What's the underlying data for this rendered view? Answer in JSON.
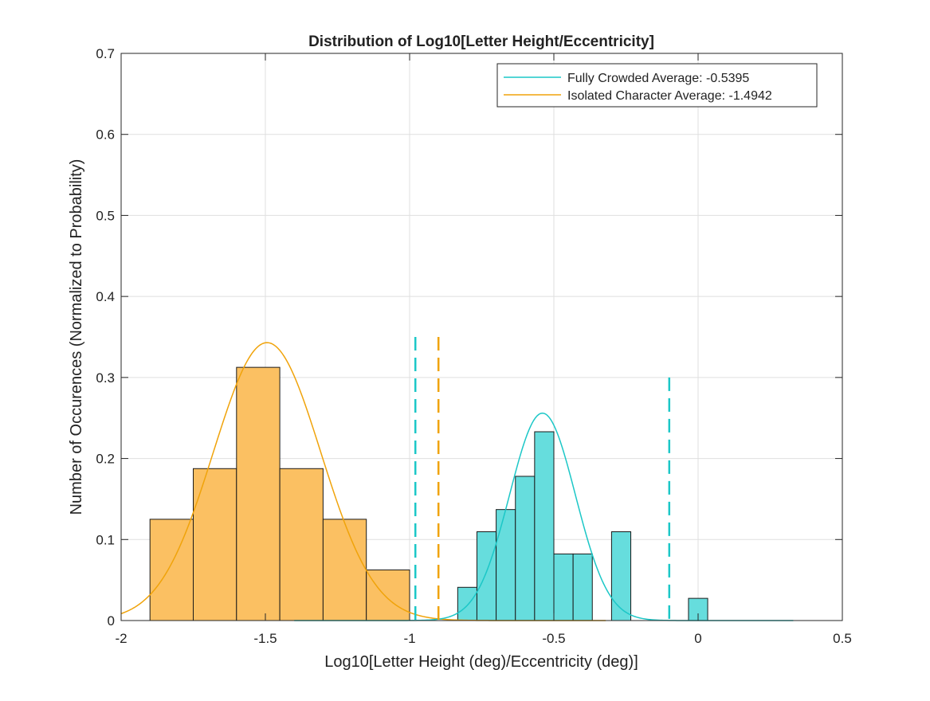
{
  "chart_data": {
    "type": "bar",
    "title": "Distribution of Log10[Letter Height/Eccentricity]",
    "xlabel": "Log10[Letter Height (deg)/Eccentricity (deg)]",
    "ylabel": "Number of Occurences (Normalized to Probability)",
    "xlim": [
      -2,
      0.5
    ],
    "ylim": [
      0,
      0.7
    ],
    "xticks": [
      -2,
      -1.5,
      -1,
      -0.5,
      0,
      0.5
    ],
    "xtick_labels": [
      "-2",
      "-1.5",
      "-1",
      "-0.5",
      "0",
      "0.5"
    ],
    "yticks": [
      0,
      0.1,
      0.2,
      0.3,
      0.4,
      0.5,
      0.6,
      0.7
    ],
    "ytick_labels": [
      "0",
      "0.1",
      "0.2",
      "0.3",
      "0.4",
      "0.5",
      "0.6",
      "0.7"
    ],
    "grid": true,
    "legend_position": "top-right",
    "series": [
      {
        "name": "Isolated Character Average: -1.4942",
        "color": "#f0a30a",
        "fill_color": "#fbc062",
        "mean": -1.4942,
        "bins": [
          {
            "x0": -1.9,
            "x1": -1.75,
            "value": 0.125
          },
          {
            "x0": -1.75,
            "x1": -1.6,
            "value": 0.1875
          },
          {
            "x0": -1.6,
            "x1": -1.45,
            "value": 0.3125
          },
          {
            "x0": -1.45,
            "x1": -1.3,
            "value": 0.1875
          },
          {
            "x0": -1.3,
            "x1": -1.15,
            "value": 0.125
          },
          {
            "x0": -1.15,
            "x1": -1.0,
            "value": 0.0625
          }
        ],
        "fit_peak": 0.343,
        "fit_sigma": 0.186,
        "fit_range": [
          -2,
          -0.32
        ],
        "dashed_lines": [
          {
            "x": -0.9,
            "y_top": 0.35
          }
        ]
      },
      {
        "name": "Fully Crowded Average: -0.5395",
        "color": "#1cc7c7",
        "fill_color": "#66dddd",
        "mean": -0.5395,
        "bins": [
          {
            "x0": -0.8333,
            "x1": -0.7667,
            "value": 0.041
          },
          {
            "x0": -0.7667,
            "x1": -0.7,
            "value": 0.1096
          },
          {
            "x0": -0.7,
            "x1": -0.6333,
            "value": 0.137
          },
          {
            "x0": -0.6333,
            "x1": -0.5667,
            "value": 0.178
          },
          {
            "x0": -0.5667,
            "x1": -0.5,
            "value": 0.233
          },
          {
            "x0": -0.5,
            "x1": -0.4333,
            "value": 0.0822
          },
          {
            "x0": -0.4333,
            "x1": -0.3667,
            "value": 0.0822
          },
          {
            "x0": -0.3,
            "x1": -0.2333,
            "value": 0.1096
          },
          {
            "x0": -0.0333,
            "x1": 0.0333,
            "value": 0.0274
          }
        ],
        "fit_peak": 0.256,
        "fit_sigma": 0.114,
        "fit_range": [
          -1.4,
          0.33
        ],
        "dashed_lines": [
          {
            "x": -0.98,
            "y_top": 0.35
          },
          {
            "x": -0.1,
            "y_top": 0.3
          }
        ]
      }
    ]
  }
}
